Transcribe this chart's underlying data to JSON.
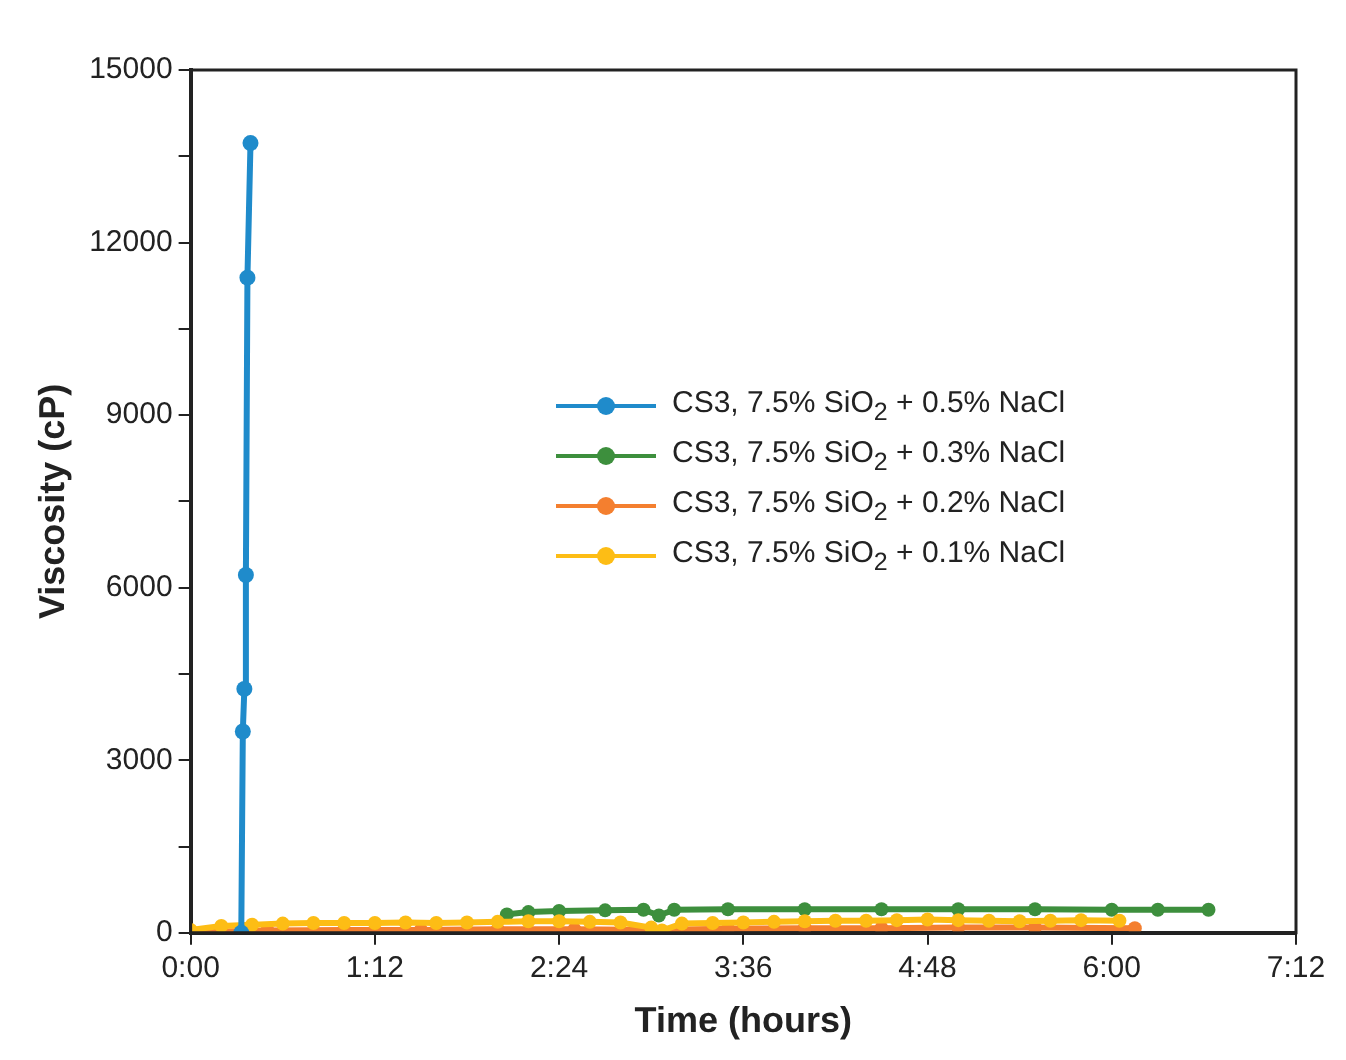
{
  "chart_data": {
    "type": "line",
    "xlabel": "Time (hours)",
    "ylabel": "Viscosity (cP)",
    "xlim": [
      0,
      7.2
    ],
    "xticks": [
      {
        "value": 0,
        "label": "0:00"
      },
      {
        "value": 1.2,
        "label": "1:12"
      },
      {
        "value": 2.4,
        "label": "2:24"
      },
      {
        "value": 3.6,
        "label": "3:36"
      },
      {
        "value": 4.8,
        "label": "4:48"
      },
      {
        "value": 6,
        "label": "6:00"
      },
      {
        "value": 7.2,
        "label": "7:12"
      }
    ],
    "ylim": [
      0,
      15000
    ],
    "yticks": [
      0,
      {
        "value": 1500,
        "label": null
      },
      3000,
      {
        "value": 4500,
        "label": null
      },
      6000,
      {
        "value": 7500,
        "label": null
      },
      9000,
      {
        "value": 10500,
        "label": null
      },
      12000,
      {
        "value": 13500,
        "label": null
      },
      15000
    ],
    "grid": false,
    "legend": "right",
    "marker": "circle",
    "line_style": "solid",
    "series": [
      {
        "name": "CS3, 7.5% SiO$_{2}$ + 0.5% NaCl",
        "color": "#1f8bcb",
        "x": [
          0.33,
          0.34,
          0.35,
          0.36,
          0.37,
          0.39
        ],
        "values": [
          0,
          3500,
          4240,
          6220,
          11390,
          13730
        ]
      },
      {
        "name": "CS3, 7.5% SiO$_{2}$ + 0.3% NaCl",
        "color": "#3d8f3d",
        "x": [
          2.06,
          2.2,
          2.4,
          2.7,
          2.95,
          3.05,
          3.15,
          3.5,
          4,
          4.5,
          5,
          5.5,
          6,
          6.3,
          6.63
        ],
        "values": [
          320,
          360,
          380,
          390,
          400,
          300,
          400,
          410,
          410,
          410,
          410,
          410,
          400,
          400,
          400
        ]
      },
      {
        "name": "CS3, 7.5% SiO$_{2}$ + 0.2% NaCl",
        "color": "#f47f2f",
        "x": [
          0,
          0.5,
          1,
          1.5,
          2,
          2.5,
          3,
          3.5,
          4,
          4.5,
          5,
          5.5,
          6.15
        ],
        "values": [
          10,
          40,
          50,
          50,
          60,
          60,
          50,
          70,
          80,
          80,
          90,
          90,
          80
        ]
      },
      {
        "name": "CS3, 7.5% SiO$_{2}$ + 0.1% NaCl",
        "color": "#fdbd15",
        "x": [
          0,
          0.2,
          0.4,
          0.6,
          0.8,
          1,
          1.2,
          1.4,
          1.6,
          1.8,
          2,
          2.2,
          2.4,
          2.6,
          2.8,
          3,
          3.07,
          3.2,
          3.4,
          3.6,
          3.8,
          4,
          4.2,
          4.4,
          4.6,
          4.8,
          5,
          5.2,
          5.4,
          5.6,
          5.8,
          6.05
        ],
        "values": [
          50,
          120,
          140,
          160,
          170,
          170,
          170,
          180,
          170,
          180,
          190,
          200,
          200,
          190,
          180,
          90,
          40,
          160,
          170,
          180,
          190,
          200,
          210,
          210,
          220,
          230,
          220,
          210,
          200,
          210,
          220,
          210
        ]
      }
    ]
  }
}
